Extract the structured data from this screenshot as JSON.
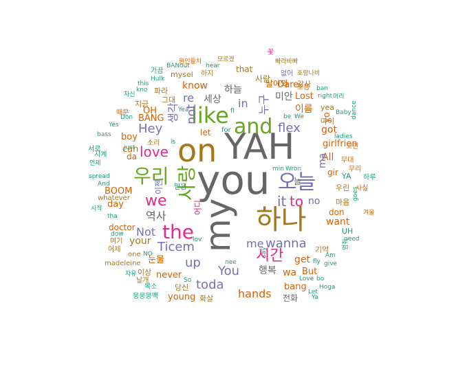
{
  "colors": {
    "gray": "#666666",
    "orange": "#d95f02",
    "purple": "#7570b3",
    "teal": "#1b9e77",
    "pink": "#e7298a",
    "green": "#66a61e",
    "gold": "#a6761d"
  },
  "words": [
    {
      "t": "YAH",
      "c": "gray"
    },
    {
      "t": "you",
      "c": "gray"
    },
    {
      "t": "on",
      "c": "gold"
    },
    {
      "t": "my",
      "c": "gray"
    },
    {
      "t": "하나",
      "c": "gold"
    },
    {
      "t": "and",
      "c": "green"
    },
    {
      "t": "like",
      "c": "green"
    },
    {
      "t": "오늘",
      "c": "purple"
    },
    {
      "t": "the",
      "c": "pink"
    },
    {
      "t": "우리",
      "c": "green"
    },
    {
      "t": "we",
      "c": "pink"
    },
    {
      "t": "사랑",
      "c": "green"
    },
    {
      "t": "love",
      "c": "pink"
    },
    {
      "t": "시간",
      "c": "pink"
    },
    {
      "t": "to",
      "c": "pink"
    },
    {
      "t": "it",
      "c": "purple"
    },
    {
      "t": "Ticem",
      "c": "purple"
    },
    {
      "t": "wanna",
      "c": "purple"
    },
    {
      "t": "flex",
      "c": "purple"
    },
    {
      "t": "Hey",
      "c": "purple"
    },
    {
      "t": "not",
      "c": "purple"
    },
    {
      "t": "You",
      "c": "purple"
    },
    {
      "t": "up",
      "c": "purple"
    },
    {
      "t": "toda",
      "c": "purple"
    },
    {
      "t": "me",
      "c": "purple"
    },
    {
      "t": "hands",
      "c": "orange"
    },
    {
      "t": "in",
      "c": "purple"
    },
    {
      "t": "re",
      "c": "purple"
    },
    {
      "t": "누구",
      "c": "purple"
    },
    {
      "t": "역사",
      "c": "gray"
    },
    {
      "t": "Not",
      "c": "purple"
    },
    {
      "t": "your",
      "c": "gold"
    },
    {
      "t": "All",
      "c": "orange"
    },
    {
      "t": "want",
      "c": "orange"
    },
    {
      "t": "get",
      "c": "orange"
    },
    {
      "t": "wa",
      "c": "orange"
    },
    {
      "t": "got",
      "c": "orange"
    },
    {
      "t": "girlfrien",
      "c": "orange"
    },
    {
      "t": "yo",
      "c": "orange"
    },
    {
      "t": "ma",
      "c": "purple"
    },
    {
      "t": "no",
      "c": "purple"
    },
    {
      "t": "know",
      "c": "orange"
    },
    {
      "t": "이름",
      "c": "orange"
    },
    {
      "t": "세상",
      "c": "gray"
    },
    {
      "t": "하늘",
      "c": "gray"
    },
    {
      "t": "미안",
      "c": "gray"
    },
    {
      "t": "Oare",
      "c": "orange"
    },
    {
      "t": "Lost",
      "c": "orange"
    },
    {
      "t": "행복",
      "c": "gray"
    },
    {
      "t": "bang",
      "c": "orange"
    },
    {
      "t": "But",
      "c": "orange"
    },
    {
      "t": "never",
      "c": "orange"
    },
    {
      "t": "눈물",
      "c": "orange"
    },
    {
      "t": "young",
      "c": "orange"
    },
    {
      "t": "boy",
      "c": "orange"
    },
    {
      "t": "BANG",
      "c": "orange"
    },
    {
      "t": "OH",
      "c": "orange"
    },
    {
      "t": "can",
      "c": "orange"
    },
    {
      "t": "day",
      "c": "orange"
    },
    {
      "t": "BOOM",
      "c": "orange"
    },
    {
      "t": "doctor",
      "c": "orange"
    },
    {
      "t": "da",
      "c": "orange"
    },
    {
      "t": "let",
      "c": "orange"
    },
    {
      "t": "don",
      "c": "orange"
    },
    {
      "t": "gir",
      "c": "orange"
    },
    {
      "t": "YA",
      "c": "teal"
    },
    {
      "t": "UH",
      "c": "teal"
    },
    {
      "t": "that",
      "c": "gold"
    },
    {
      "t": "사람",
      "c": "gold"
    },
    {
      "t": "감사",
      "c": "gold"
    },
    {
      "t": "우린",
      "c": "gold"
    },
    {
      "t": "마음",
      "c": "gold"
    },
    {
      "t": "기억",
      "c": "gold"
    },
    {
      "t": "아이",
      "c": "gold"
    },
    {
      "t": "yea",
      "c": "gold"
    },
    {
      "t": "그대",
      "c": "gold"
    },
    {
      "t": "지금",
      "c": "gold"
    },
    {
      "t": "파라",
      "c": "gold"
    },
    {
      "t": "당신",
      "c": "gold"
    },
    {
      "t": "화살",
      "c": "gold"
    },
    {
      "t": "이상",
      "c": "gold"
    },
    {
      "t": "날개",
      "c": "gold"
    },
    {
      "t": "여기",
      "c": "gold"
    },
    {
      "t": "어제",
      "c": "gold"
    },
    {
      "t": "one",
      "c": "gold"
    },
    {
      "t": "madeleine",
      "c": "gold"
    },
    {
      "t": "whatever",
      "c": "gold"
    },
    {
      "t": "하지",
      "c": "gold"
    },
    {
      "t": "mysel",
      "c": "gold"
    },
    {
      "t": "원인들처",
      "c": "orange"
    },
    {
      "t": "모르겠",
      "c": "gold"
    },
    {
      "t": "빠라바빠",
      "c": "gold"
    },
    {
      "t": "호랑나비",
      "c": "gold"
    },
    {
      "t": "소리",
      "c": "gold"
    },
    {
      "t": "Hoga",
      "c": "teal"
    },
    {
      "t": "Wron",
      "c": "teal"
    },
    {
      "t": "min",
      "c": "teal"
    },
    {
      "t": "Baby",
      "c": "teal"
    },
    {
      "t": "ladies",
      "c": "teal"
    },
    {
      "t": "dance",
      "c": "teal"
    },
    {
      "t": "goes",
      "c": "teal"
    },
    {
      "t": "need",
      "c": "teal"
    },
    {
      "t": "give",
      "c": "teal"
    },
    {
      "t": "Am",
      "c": "teal"
    },
    {
      "t": "fly",
      "c": "teal"
    },
    {
      "t": "Love",
      "c": "teal"
    },
    {
      "t": "Let",
      "c": "teal"
    },
    {
      "t": "Ya",
      "c": "teal"
    },
    {
      "t": "spread",
      "c": "teal"
    },
    {
      "t": "And",
      "c": "teal"
    },
    {
      "t": "bass",
      "c": "teal"
    },
    {
      "t": "Yes",
      "c": "teal"
    },
    {
      "t": "tha",
      "c": "teal"
    },
    {
      "t": "NO",
      "c": "teal"
    },
    {
      "t": "So",
      "c": "teal"
    },
    {
      "t": "Hulk",
      "c": "teal"
    },
    {
      "t": "BANout",
      "c": "teal"
    },
    {
      "t": "hear",
      "c": "teal"
    },
    {
      "t": "ban",
      "c": "teal"
    },
    {
      "t": "right",
      "c": "teal"
    },
    {
      "t": "We",
      "c": "teal"
    },
    {
      "t": "be",
      "c": "teal"
    },
    {
      "t": "for",
      "c": "teal"
    },
    {
      "t": "lov",
      "c": "teal"
    },
    {
      "t": "nee",
      "c": "teal"
    },
    {
      "t": "say",
      "c": "teal"
    },
    {
      "t": "Don",
      "c": "teal"
    },
    {
      "t": "Yea",
      "c": "teal"
    },
    {
      "t": "this",
      "c": "teal"
    },
    {
      "t": "kno",
      "c": "teal"
    },
    {
      "t": "just",
      "c": "teal"
    },
    {
      "t": "is",
      "c": "teal"
    },
    {
      "t": "fl",
      "c": "teal"
    },
    {
      "t": "bo",
      "c": "teal"
    },
    {
      "t": "dow",
      "c": "teal"
    },
    {
      "t": "멈춰",
      "c": "teal"
    },
    {
      "t": "사실",
      "c": "orange"
    },
    {
      "t": "하루",
      "c": "teal"
    },
    {
      "t": "무리",
      "c": "orange"
    },
    {
      "t": "무대",
      "c": "orange"
    },
    {
      "t": "고민",
      "c": "orange"
    },
    {
      "t": "머리",
      "c": "teal"
    },
    {
      "t": "겨울",
      "c": "orange"
    },
    {
      "t": "전화",
      "c": "gray"
    },
    {
      "t": "조용",
      "c": "orange"
    },
    {
      "t": "때문",
      "c": "orange"
    },
    {
      "t": "자유",
      "c": "teal"
    },
    {
      "t": "목소",
      "c": "teal"
    },
    {
      "t": "뭉뭉뭉맥",
      "c": "teal"
    },
    {
      "t": "시작",
      "c": "teal"
    },
    {
      "t": "언제",
      "c": "teal"
    },
    {
      "t": "시계",
      "c": "teal"
    },
    {
      "t": "서로",
      "c": "teal"
    },
    {
      "t": "가끔",
      "c": "teal"
    },
    {
      "t": "자신",
      "c": "teal"
    },
    {
      "t": "믿음",
      "c": "teal"
    },
    {
      "t": "어디",
      "c": "pink"
    },
    {
      "t": "이젠",
      "c": "purple"
    },
    {
      "t": "생각",
      "c": "purple"
    },
    {
      "t": "없어",
      "c": "purple"
    },
    {
      "t": "날아와",
      "c": "orange"
    },
    {
      "t": "꽃",
      "c": "pink"
    },
    {
      "t": "늘",
      "c": "gray"
    }
  ]
}
